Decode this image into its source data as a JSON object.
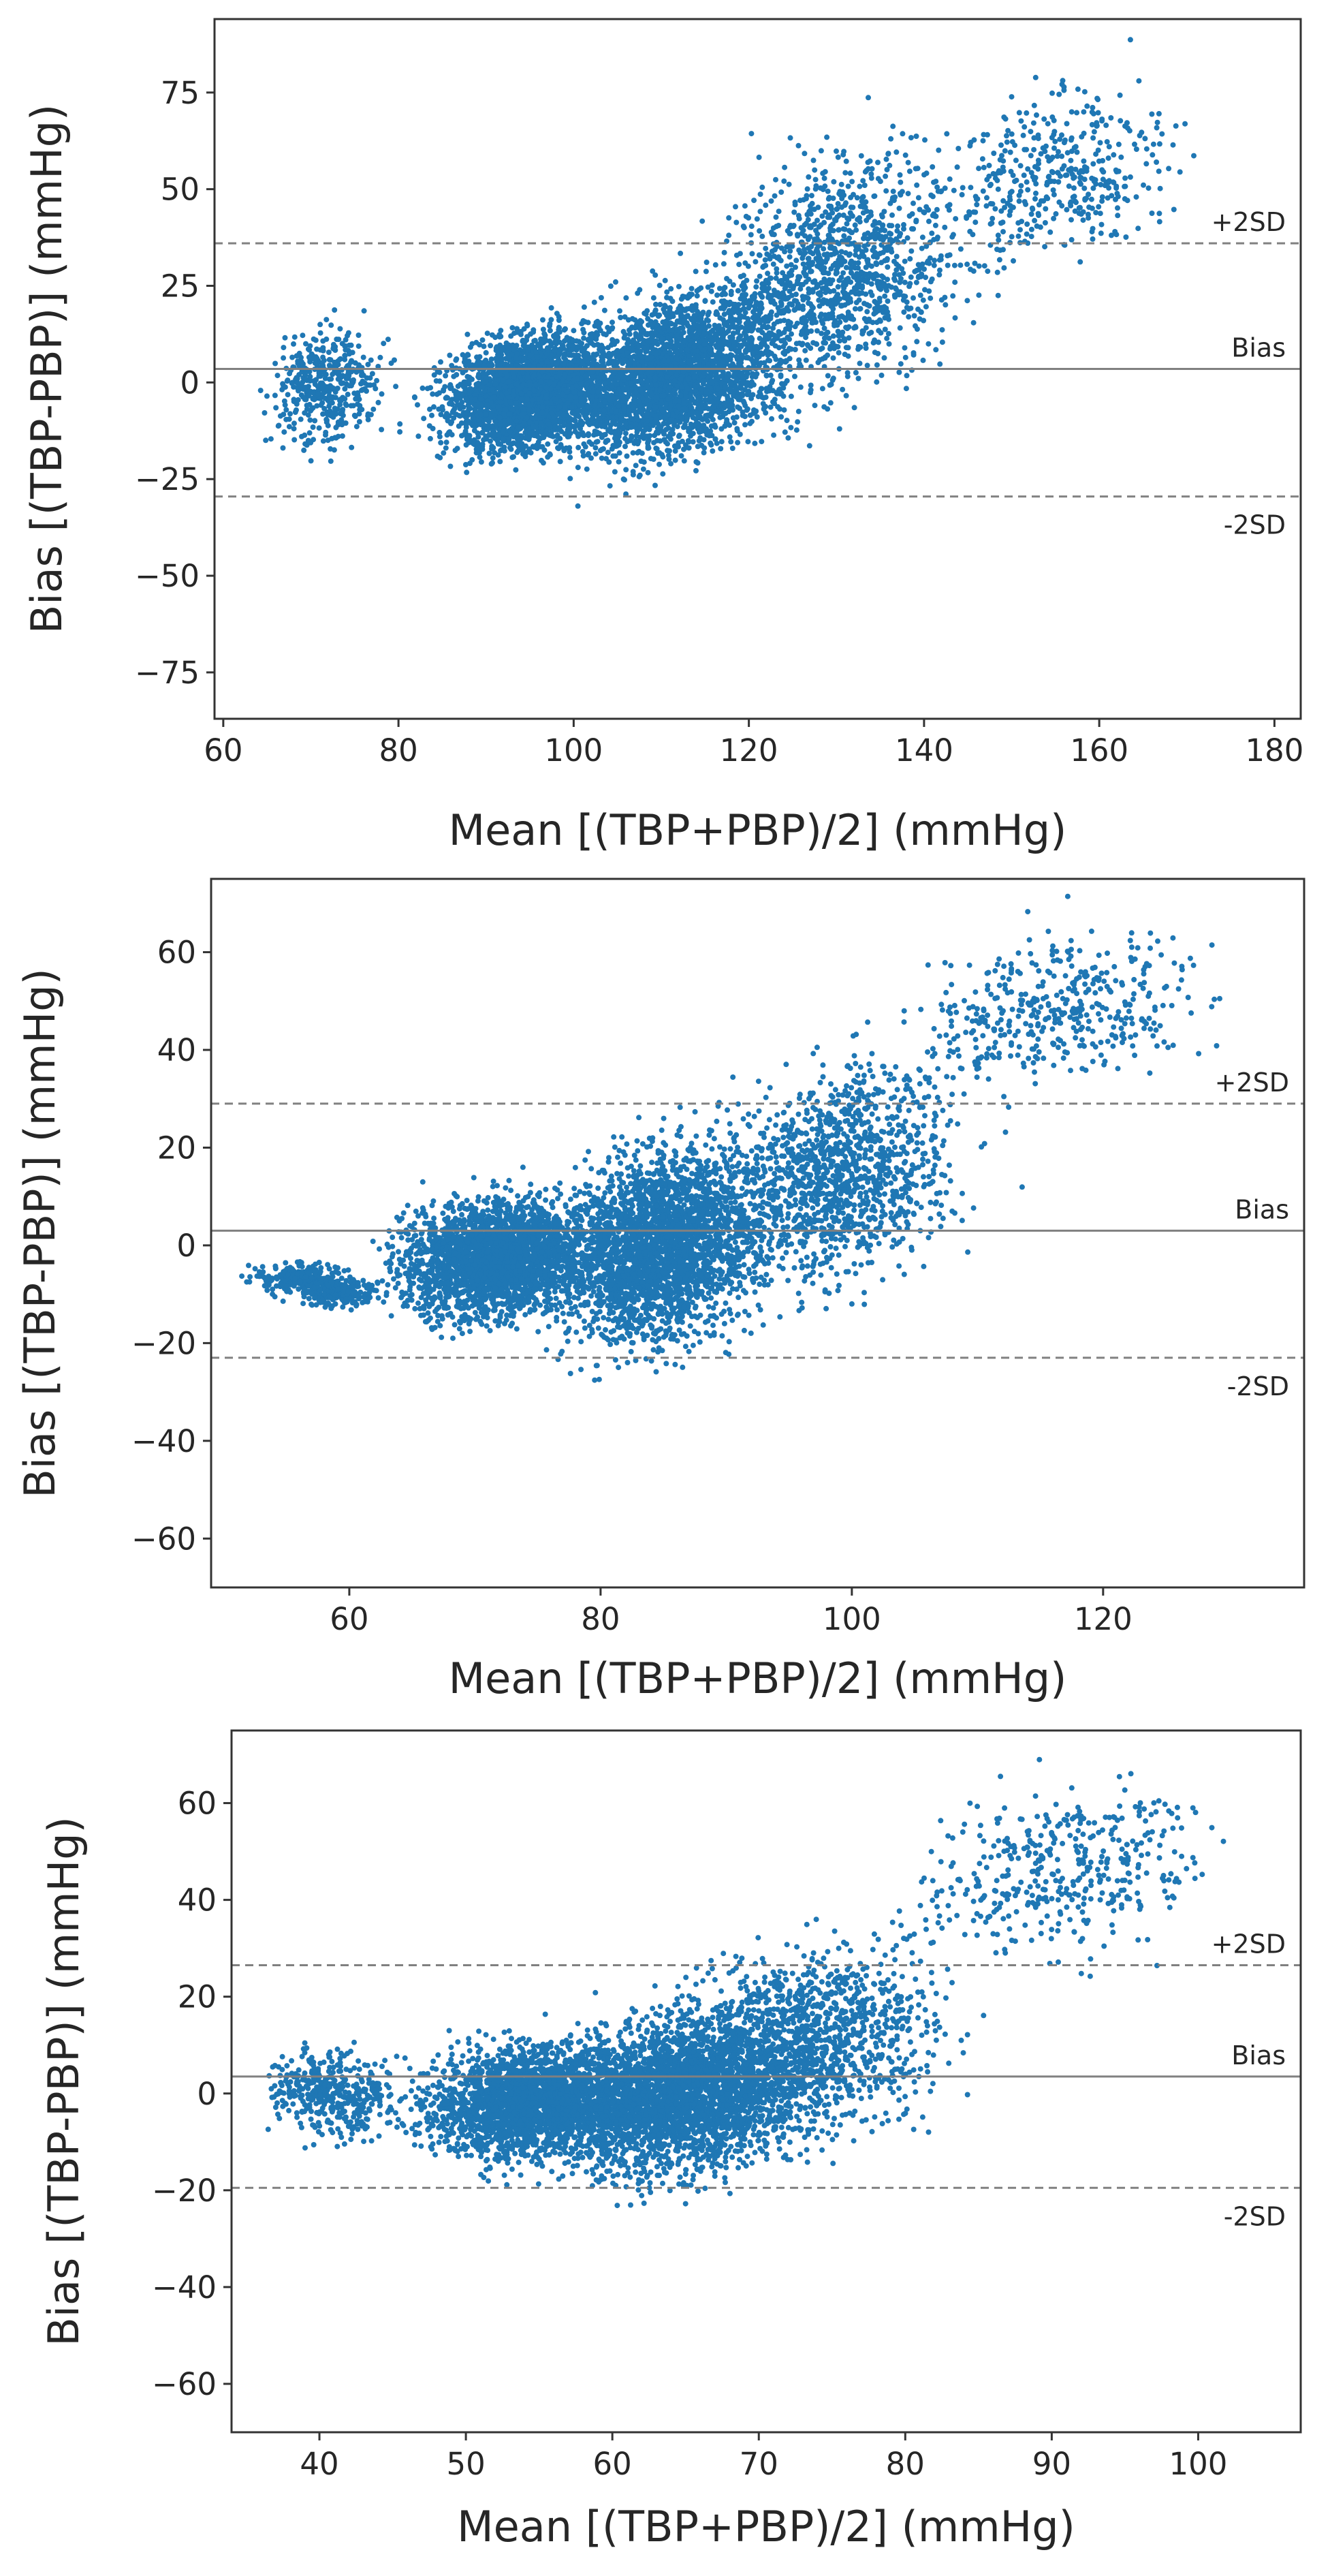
{
  "chart_data": [
    {
      "type": "scatter",
      "title": "",
      "xlabel": "Mean [(TBP+PBP)/2] (mmHg)",
      "ylabel": "Bias [(TBP-PBP)] (mmHg)",
      "xlim": [
        59,
        183
      ],
      "ylim": [
        -87,
        94
      ],
      "xticks": [
        60,
        80,
        100,
        120,
        140,
        160,
        180
      ],
      "yticks": [
        -75,
        -50,
        -25,
        0,
        25,
        50,
        75
      ],
      "grid": false,
      "marker_color": "#1f77b4",
      "reference_lines": [
        {
          "name": "+2SD",
          "label": "+2SD",
          "value": 36,
          "style": "dashed"
        },
        {
          "name": "bias",
          "label": "Bias",
          "value": 3.5,
          "style": "solid"
        },
        {
          "name": "-2SD",
          "label": "-2SD",
          "value": -29.5,
          "style": "dashed"
        }
      ],
      "clusters": [
        {
          "x": [
            82,
            108
          ],
          "y": [
            -25,
            20
          ],
          "density": "high"
        },
        {
          "x": [
            95,
            128
          ],
          "y": [
            -30,
            35
          ],
          "density": "high"
        },
        {
          "x": [
            110,
            150
          ],
          "y": [
            -20,
            75
          ],
          "density": "medium"
        },
        {
          "x": [
            135,
            175
          ],
          "y": [
            20,
            88
          ],
          "density": "low"
        },
        {
          "x": [
            64,
            80
          ],
          "y": [
            -22,
            20
          ],
          "density": "low"
        }
      ]
    },
    {
      "type": "scatter",
      "title": "",
      "xlabel": "Mean [(TBP+PBP)/2] (mmHg)",
      "ylabel": "Bias [(TBP-PBP)] (mmHg)",
      "xlim": [
        49,
        136
      ],
      "ylim": [
        -70,
        75
      ],
      "xticks": [
        60,
        80,
        100,
        120
      ],
      "yticks": [
        -60,
        -40,
        -20,
        0,
        20,
        40,
        60
      ],
      "grid": false,
      "marker_color": "#1f77b4",
      "reference_lines": [
        {
          "name": "+2SD",
          "label": "+2SD",
          "value": 29,
          "style": "dashed"
        },
        {
          "name": "bias",
          "label": "Bias",
          "value": 3,
          "style": "solid"
        },
        {
          "name": "-2SD",
          "label": "-2SD",
          "value": -23,
          "style": "dashed"
        }
      ],
      "clusters": [
        {
          "x": [
            62,
            82
          ],
          "y": [
            -20,
            15
          ],
          "density": "high"
        },
        {
          "x": [
            75,
            95
          ],
          "y": [
            -30,
            30
          ],
          "density": "high"
        },
        {
          "x": [
            85,
            112
          ],
          "y": [
            -20,
            50
          ],
          "density": "medium"
        },
        {
          "x": [
            100,
            133
          ],
          "y": [
            25,
            72
          ],
          "density": "low"
        },
        {
          "x": [
            53,
            62
          ],
          "y": [
            -12,
            -4
          ],
          "density": "low"
        }
      ]
    },
    {
      "type": "scatter",
      "title": "",
      "xlabel": "Mean [(TBP+PBP)/2] (mmHg)",
      "ylabel": "Bias [(TBP-PBP)] (mmHg)",
      "xlim": [
        34,
        107
      ],
      "ylim": [
        -70,
        75
      ],
      "xticks": [
        40,
        50,
        60,
        70,
        80,
        90,
        100
      ],
      "yticks": [
        -60,
        -40,
        -20,
        0,
        20,
        40,
        60
      ],
      "grid": false,
      "marker_color": "#1f77b4",
      "reference_lines": [
        {
          "name": "+2SD",
          "label": "+2SD",
          "value": 26.5,
          "style": "dashed"
        },
        {
          "name": "bias",
          "label": "Bias",
          "value": 3.5,
          "style": "solid"
        },
        {
          "name": "-2SD",
          "label": "-2SD",
          "value": -19.5,
          "style": "dashed"
        }
      ],
      "clusters": [
        {
          "x": [
            45,
            65
          ],
          "y": [
            -18,
            15
          ],
          "density": "high"
        },
        {
          "x": [
            55,
            75
          ],
          "y": [
            -25,
            25
          ],
          "density": "high"
        },
        {
          "x": [
            62,
            85
          ],
          "y": [
            -20,
            40
          ],
          "density": "medium"
        },
        {
          "x": [
            78,
            104
          ],
          "y": [
            20,
            72
          ],
          "density": "low"
        },
        {
          "x": [
            37,
            45
          ],
          "y": [
            -12,
            12
          ],
          "density": "low"
        }
      ]
    }
  ]
}
